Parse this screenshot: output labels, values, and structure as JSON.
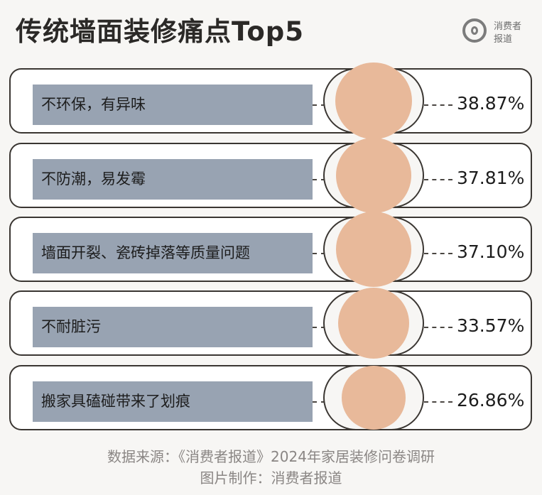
{
  "title": "传统墙面装修痛点Top5",
  "logo": {
    "line1": "消费者",
    "line2": "报道"
  },
  "chart_data": {
    "type": "bar",
    "title": "传统墙面装修痛点Top5",
    "categories": [
      "不环保，有异味",
      "不防潮，易发霉",
      "墙面开裂、瓷砖掉落等质量问题",
      "不耐脏污",
      "搬家具磕碰带来了划痕"
    ],
    "values": [
      38.87,
      37.81,
      37.1,
      33.57,
      26.86
    ],
    "value_labels": [
      "38.87%",
      "37.81%",
      "37.10%",
      "33.57%",
      "26.86%"
    ],
    "unit": "%"
  },
  "colors": {
    "label_box": "#98a3b2",
    "circle": "#e8b99a",
    "border": "#3a3632"
  },
  "footer": {
    "source": "数据来源：《消费者报道》2024年家居装修问卷调研",
    "credit": "图片制作：消费者报道"
  }
}
